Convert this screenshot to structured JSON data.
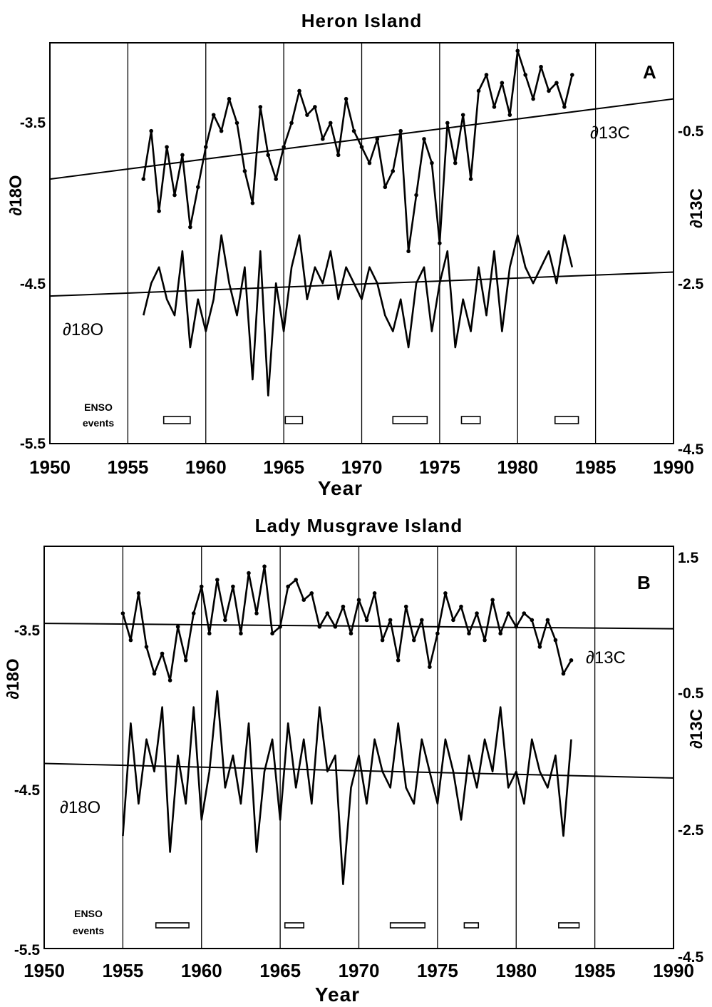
{
  "chart_data": [
    {
      "type": "line",
      "panel": "A",
      "title": "Heron Island",
      "xlabel": "Year",
      "ylabel_left": "∂18O",
      "ylabel_right": "∂13C",
      "xlim": [
        1950,
        1990
      ],
      "x_ticks": [
        "1950",
        "1955",
        "1960",
        "1965",
        "1970",
        "1975",
        "1980",
        "1985",
        "1990"
      ],
      "ylim_left": [
        -5.5,
        -3.0
      ],
      "y_ticks_left": [
        "-3.5",
        "-4.5",
        "-5.5"
      ],
      "ylim_right": [
        -4.5,
        0.5
      ],
      "y_ticks_right": [
        "-0.5",
        "-2.5",
        "-4.5"
      ],
      "gridlines_x": [
        1955,
        1960,
        1965,
        1970,
        1975,
        1980,
        1985
      ],
      "series": [
        {
          "name": "∂13C",
          "axis": "right",
          "markers": true,
          "x": [
            1956.0,
            1956.5,
            1957.0,
            1957.5,
            1958.0,
            1958.5,
            1959.0,
            1959.5,
            1960.0,
            1960.5,
            1961.0,
            1961.5,
            1962.0,
            1962.5,
            1963.0,
            1963.5,
            1964.0,
            1964.5,
            1965.0,
            1965.5,
            1966.0,
            1966.5,
            1967.0,
            1967.5,
            1968.0,
            1968.5,
            1969.0,
            1969.5,
            1970.0,
            1970.5,
            1971.0,
            1971.5,
            1972.0,
            1972.5,
            1973.0,
            1973.5,
            1974.0,
            1974.5,
            1975.0,
            1975.5,
            1976.0,
            1976.5,
            1977.0,
            1977.5,
            1978.0,
            1978.5,
            1979.0,
            1979.5,
            1980.0,
            1980.5,
            1981.0,
            1981.5,
            1982.0,
            1982.5,
            1983.0,
            1983.5
          ],
          "y": [
            -1.2,
            -0.6,
            -1.6,
            -0.8,
            -1.4,
            -0.9,
            -1.8,
            -1.3,
            -0.8,
            -0.4,
            -0.6,
            -0.2,
            -0.5,
            -1.1,
            -1.5,
            -0.3,
            -0.9,
            -1.2,
            -0.8,
            -0.5,
            -0.1,
            -0.4,
            -0.3,
            -0.7,
            -0.5,
            -0.9,
            -0.2,
            -0.6,
            -0.8,
            -1.0,
            -0.7,
            -1.3,
            -1.1,
            -0.6,
            -2.1,
            -1.4,
            -0.7,
            -1.0,
            -2.0,
            -0.5,
            -1.0,
            -0.4,
            -1.2,
            -0.1,
            0.1,
            -0.3,
            0.0,
            -0.4,
            0.4,
            0.1,
            -0.2,
            0.2,
            -0.1,
            0.0,
            -0.3,
            0.1
          ]
        },
        {
          "name": "∂18O",
          "axis": "left",
          "markers": false,
          "x": [
            1956.0,
            1956.5,
            1957.0,
            1957.5,
            1958.0,
            1958.5,
            1959.0,
            1959.5,
            1960.0,
            1960.5,
            1961.0,
            1961.5,
            1962.0,
            1962.5,
            1963.0,
            1963.5,
            1964.0,
            1964.5,
            1965.0,
            1965.5,
            1966.0,
            1966.5,
            1967.0,
            1967.5,
            1968.0,
            1968.5,
            1969.0,
            1969.5,
            1970.0,
            1970.5,
            1971.0,
            1971.5,
            1972.0,
            1972.5,
            1973.0,
            1973.5,
            1974.0,
            1974.5,
            1975.0,
            1975.5,
            1976.0,
            1976.5,
            1977.0,
            1977.5,
            1978.0,
            1978.5,
            1979.0,
            1979.5,
            1980.0,
            1980.5,
            1981.0,
            1981.5,
            1982.0,
            1982.5,
            1983.0,
            1983.5
          ],
          "y": [
            -4.7,
            -4.5,
            -4.4,
            -4.6,
            -4.7,
            -4.3,
            -4.9,
            -4.6,
            -4.8,
            -4.6,
            -4.2,
            -4.5,
            -4.7,
            -4.4,
            -5.1,
            -4.3,
            -5.2,
            -4.5,
            -4.8,
            -4.4,
            -4.2,
            -4.6,
            -4.4,
            -4.5,
            -4.3,
            -4.6,
            -4.4,
            -4.5,
            -4.6,
            -4.4,
            -4.5,
            -4.7,
            -4.8,
            -4.6,
            -4.9,
            -4.5,
            -4.4,
            -4.8,
            -4.5,
            -4.3,
            -4.9,
            -4.6,
            -4.8,
            -4.4,
            -4.7,
            -4.3,
            -4.8,
            -4.4,
            -4.2,
            -4.4,
            -4.5,
            -4.4,
            -4.3,
            -4.5,
            -4.2,
            -4.4
          ]
        }
      ],
      "trend_lines": [
        {
          "name": "∂13C trend",
          "axis": "right",
          "x": [
            1950,
            1990
          ],
          "y": [
            -1.2,
            -0.2
          ]
        },
        {
          "name": "∂18O trend",
          "axis": "left",
          "x": [
            1950,
            1990
          ],
          "y": [
            -4.58,
            -4.43
          ]
        }
      ],
      "enso_label": [
        "ENSO",
        "events"
      ],
      "enso_events": [
        [
          1957.3,
          1959.0
        ],
        [
          1965.1,
          1966.2
        ],
        [
          1972.0,
          1974.2
        ],
        [
          1976.4,
          1977.6
        ],
        [
          1982.4,
          1983.9
        ]
      ]
    },
    {
      "type": "line",
      "panel": "B",
      "title": "Lady Musgrave Island",
      "xlabel": "Year",
      "ylabel_left": "∂18O",
      "ylabel_right": "∂13C",
      "xlim": [
        1950,
        1990
      ],
      "x_ticks": [
        "1950",
        "1955",
        "1960",
        "1965",
        "1970",
        "1975",
        "1980",
        "1985",
        "1990"
      ],
      "ylim_left": [
        -5.5,
        -3.0
      ],
      "y_ticks_left": [
        "-3.5",
        "-4.5",
        "-5.5"
      ],
      "ylim_right": [
        -4.5,
        1.5
      ],
      "y_ticks_right": [
        "1.5",
        "-0.5",
        "-2.5",
        "-4.5"
      ],
      "gridlines_x": [
        1955,
        1960,
        1965,
        1970,
        1975,
        1980,
        1985
      ],
      "series": [
        {
          "name": "∂13C",
          "axis": "right",
          "markers": true,
          "x": [
            1955.0,
            1955.5,
            1956.0,
            1956.5,
            1957.0,
            1957.5,
            1958.0,
            1958.5,
            1959.0,
            1959.5,
            1960.0,
            1960.5,
            1961.0,
            1961.5,
            1962.0,
            1962.5,
            1963.0,
            1963.5,
            1964.0,
            1964.5,
            1965.0,
            1965.5,
            1966.0,
            1966.5,
            1967.0,
            1967.5,
            1968.0,
            1968.5,
            1969.0,
            1969.5,
            1970.0,
            1970.5,
            1971.0,
            1971.5,
            1972.0,
            1972.5,
            1973.0,
            1973.5,
            1974.0,
            1974.5,
            1975.0,
            1975.5,
            1976.0,
            1976.5,
            1977.0,
            1977.5,
            1978.0,
            1978.5,
            1979.0,
            1979.5,
            1980.0,
            1980.5,
            1981.0,
            1981.5,
            1982.0,
            1982.5,
            1983.0,
            1983.5
          ],
          "y": [
            0.5,
            0.1,
            0.8,
            0.0,
            -0.4,
            -0.1,
            -0.5,
            0.3,
            -0.2,
            0.5,
            0.9,
            0.2,
            1.0,
            0.4,
            0.9,
            0.2,
            1.1,
            0.5,
            1.2,
            0.2,
            0.3,
            0.9,
            1.0,
            0.7,
            0.8,
            0.3,
            0.5,
            0.3,
            0.6,
            0.2,
            0.7,
            0.4,
            0.8,
            0.1,
            0.4,
            -0.2,
            0.6,
            0.1,
            0.4,
            -0.3,
            0.2,
            0.8,
            0.4,
            0.6,
            0.2,
            0.5,
            0.1,
            0.7,
            0.2,
            0.5,
            0.3,
            0.5,
            0.4,
            0.0,
            0.4,
            0.1,
            -0.4,
            -0.2
          ]
        },
        {
          "name": "∂18O",
          "axis": "left",
          "markers": false,
          "x": [
            1955.0,
            1955.5,
            1956.0,
            1956.5,
            1957.0,
            1957.5,
            1958.0,
            1958.5,
            1959.0,
            1959.5,
            1960.0,
            1960.5,
            1961.0,
            1961.5,
            1962.0,
            1962.5,
            1963.0,
            1963.5,
            1964.0,
            1964.5,
            1965.0,
            1965.5,
            1966.0,
            1966.5,
            1967.0,
            1967.5,
            1968.0,
            1968.5,
            1969.0,
            1969.5,
            1970.0,
            1970.5,
            1971.0,
            1971.5,
            1972.0,
            1972.5,
            1973.0,
            1973.5,
            1974.0,
            1974.5,
            1975.0,
            1975.5,
            1976.0,
            1976.5,
            1977.0,
            1977.5,
            1978.0,
            1978.5,
            1979.0,
            1979.5,
            1980.0,
            1980.5,
            1981.0,
            1981.5,
            1982.0,
            1982.5,
            1983.0,
            1983.5
          ],
          "y": [
            -4.8,
            -4.1,
            -4.6,
            -4.2,
            -4.4,
            -4.0,
            -4.9,
            -4.3,
            -4.6,
            -4.0,
            -4.7,
            -4.4,
            -3.9,
            -4.5,
            -4.3,
            -4.6,
            -4.1,
            -4.9,
            -4.4,
            -4.2,
            -4.7,
            -4.1,
            -4.5,
            -4.2,
            -4.6,
            -4.0,
            -4.4,
            -4.3,
            -5.1,
            -4.5,
            -4.3,
            -4.6,
            -4.2,
            -4.4,
            -4.5,
            -4.1,
            -4.5,
            -4.6,
            -4.2,
            -4.4,
            -4.6,
            -4.2,
            -4.4,
            -4.7,
            -4.3,
            -4.5,
            -4.2,
            -4.4,
            -4.0,
            -4.5,
            -4.4,
            -4.6,
            -4.2,
            -4.4,
            -4.5,
            -4.3,
            -4.8,
            -4.2
          ]
        }
      ],
      "trend_lines": [
        {
          "name": "∂13C trend",
          "axis": "right",
          "x": [
            1950,
            1990
          ],
          "y": [
            0.35,
            0.27
          ]
        },
        {
          "name": "∂18O trend",
          "axis": "left",
          "x": [
            1950,
            1990
          ],
          "y": [
            -4.35,
            -4.44
          ]
        }
      ],
      "enso_label": [
        "ENSO",
        "events"
      ],
      "enso_events": [
        [
          1957.1,
          1959.2
        ],
        [
          1965.3,
          1966.5
        ],
        [
          1972.0,
          1974.2
        ],
        [
          1976.7,
          1977.6
        ],
        [
          1982.7,
          1984.0
        ]
      ]
    }
  ]
}
